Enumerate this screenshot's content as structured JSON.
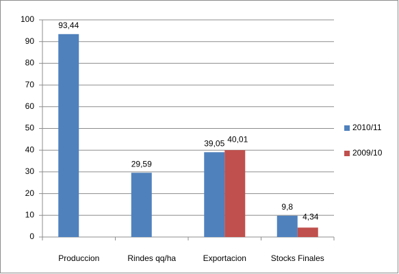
{
  "chart_data": {
    "type": "bar",
    "categories": [
      "Produccion",
      "Rindes qq/ha",
      "Exportacion",
      "Stocks Finales"
    ],
    "series": [
      {
        "name": "2010/11",
        "color": "#4f81bd",
        "values": [
          93.44,
          29.59,
          39.05,
          9.8
        ],
        "value_labels": [
          "93,44",
          "29,59",
          "39,05",
          "9,8"
        ]
      },
      {
        "name": "2009/10",
        "color": "#c0504d",
        "values": [
          null,
          null,
          40.01,
          4.34
        ],
        "value_labels": [
          null,
          null,
          "40,01",
          "4,34"
        ]
      }
    ],
    "ylim": [
      0,
      100
    ],
    "yticks": [
      0,
      10,
      20,
      30,
      40,
      50,
      60,
      70,
      80,
      90,
      100
    ],
    "grid": true,
    "legend": "right"
  }
}
